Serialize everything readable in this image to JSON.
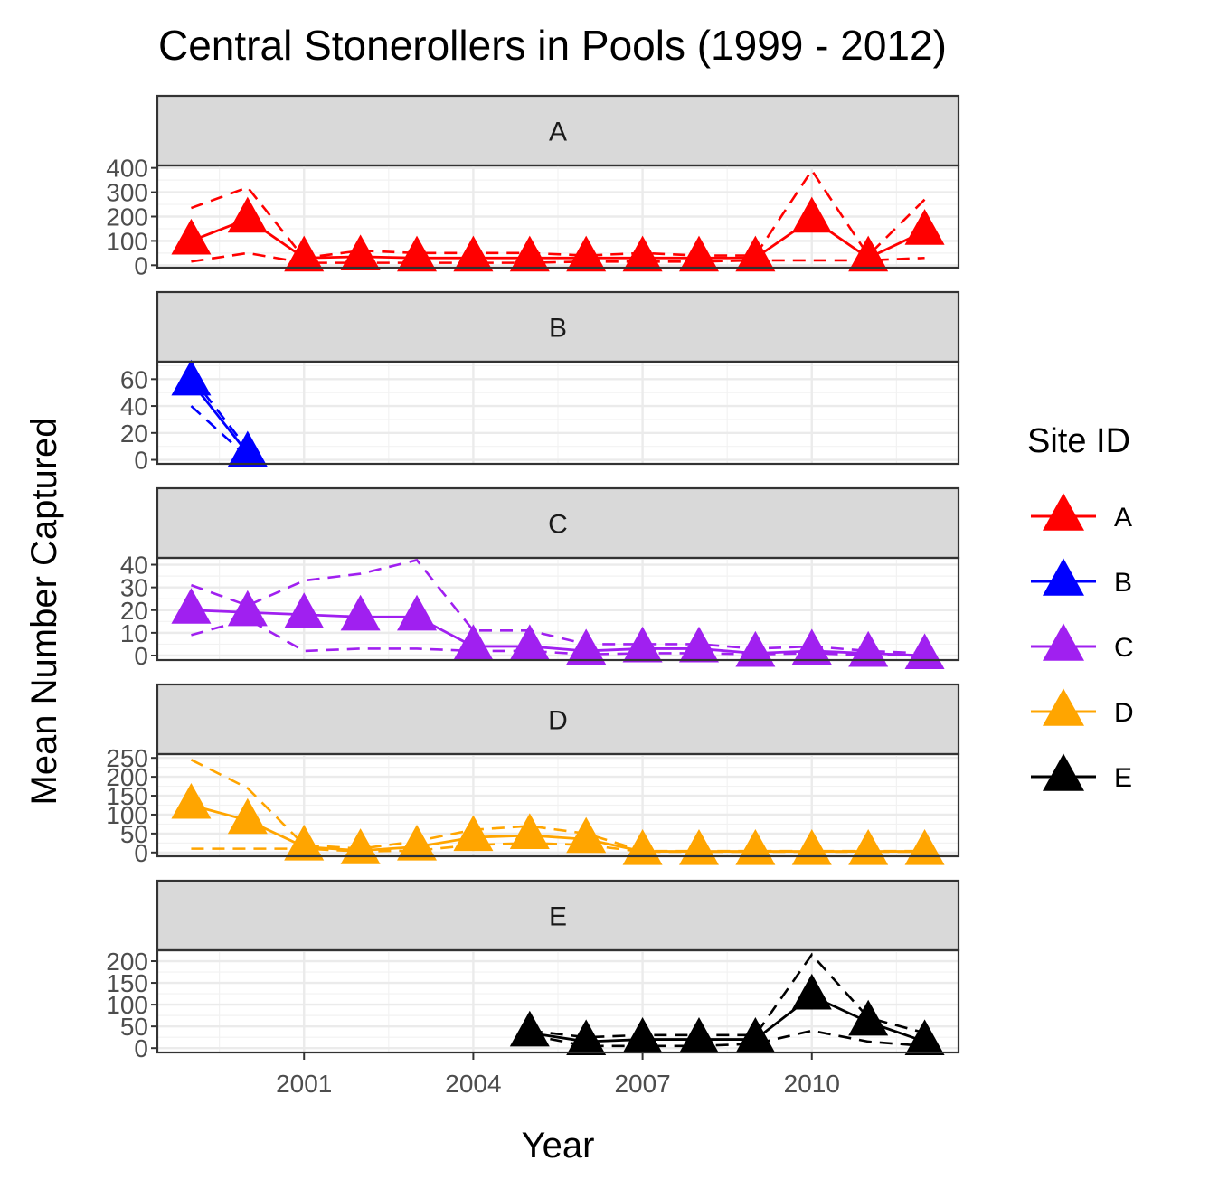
{
  "chart_data": {
    "type": "line",
    "title": "Central Stonerollers in Pools (1999 - 2012)",
    "xlabel": "Year",
    "ylabel": "Mean Number Captured",
    "x_ticks": [
      2001,
      2004,
      2007,
      2010
    ],
    "xlim": [
      1998.4,
      2012.6
    ],
    "legend": {
      "title": "Site ID",
      "placement": "right",
      "entries": [
        "A",
        "B",
        "C",
        "D",
        "E"
      ]
    },
    "facets": [
      {
        "strip": "A",
        "color": "#ff0000",
        "ylim": [
          -10,
          410
        ],
        "y_ticks": [
          0,
          100,
          200,
          300,
          400
        ],
        "x": [
          1999,
          2000,
          2001,
          2002,
          2003,
          2004,
          2005,
          2006,
          2007,
          2008,
          2009,
          2010,
          2011,
          2012
        ],
        "mean": [
          100,
          190,
          30,
          35,
          30,
          30,
          30,
          30,
          30,
          30,
          30,
          190,
          30,
          140
        ],
        "upper": [
          235,
          320,
          30,
          60,
          50,
          50,
          50,
          40,
          50,
          40,
          40,
          390,
          40,
          270
        ],
        "lower": [
          15,
          50,
          10,
          10,
          10,
          10,
          10,
          15,
          15,
          15,
          20,
          20,
          20,
          30
        ]
      },
      {
        "strip": "B",
        "color": "#0000ff",
        "ylim": [
          -3,
          73
        ],
        "y_ticks": [
          0,
          20,
          40,
          60
        ],
        "x": [
          1999,
          2000
        ],
        "mean": [
          58,
          5
        ],
        "upper": [
          62,
          8
        ],
        "lower": [
          40,
          2
        ]
      },
      {
        "strip": "C",
        "color": "#a020f0",
        "ylim": [
          -2,
          43
        ],
        "y_ticks": [
          0,
          10,
          20,
          30,
          40
        ],
        "x": [
          1999,
          2000,
          2001,
          2002,
          2003,
          2004,
          2005,
          2006,
          2007,
          2008,
          2009,
          2010,
          2011,
          2012
        ],
        "mean": [
          20,
          19,
          18,
          17,
          17,
          4,
          4,
          2,
          3,
          3,
          1,
          2,
          1,
          0
        ],
        "upper": [
          31,
          22,
          33,
          36,
          42,
          11,
          11,
          5,
          5,
          5,
          3,
          4,
          2,
          1
        ],
        "lower": [
          9,
          16,
          2,
          3,
          3,
          2,
          2,
          0.5,
          1,
          1,
          0.5,
          1,
          0.2,
          0
        ]
      },
      {
        "strip": "D",
        "color": "#ffa500",
        "ylim": [
          -10,
          260
        ],
        "y_ticks": [
          0,
          50,
          100,
          150,
          200,
          250
        ],
        "x": [
          1999,
          2000,
          2001,
          2002,
          2003,
          2004,
          2005,
          2006,
          2007,
          2008,
          2009,
          2010,
          2011,
          2012
        ],
        "mean": [
          125,
          85,
          15,
          5,
          15,
          40,
          45,
          35,
          3,
          3,
          3,
          3,
          3,
          3
        ],
        "upper": [
          245,
          170,
          20,
          10,
          30,
          60,
          70,
          50,
          4,
          4,
          4,
          4,
          4,
          4
        ],
        "lower": [
          10,
          10,
          10,
          3,
          5,
          20,
          25,
          20,
          2,
          2,
          2,
          2,
          2,
          2
        ]
      },
      {
        "strip": "E",
        "color": "#000000",
        "ylim": [
          -10,
          225
        ],
        "y_ticks": [
          0,
          50,
          100,
          150,
          200
        ],
        "x": [
          2005,
          2006,
          2007,
          2008,
          2009,
          2010,
          2011,
          2012
        ],
        "mean": [
          35,
          15,
          20,
          20,
          20,
          120,
          60,
          15
        ],
        "upper": [
          40,
          25,
          30,
          30,
          30,
          215,
          70,
          35
        ],
        "lower": [
          30,
          5,
          5,
          5,
          10,
          40,
          15,
          5
        ]
      }
    ]
  }
}
